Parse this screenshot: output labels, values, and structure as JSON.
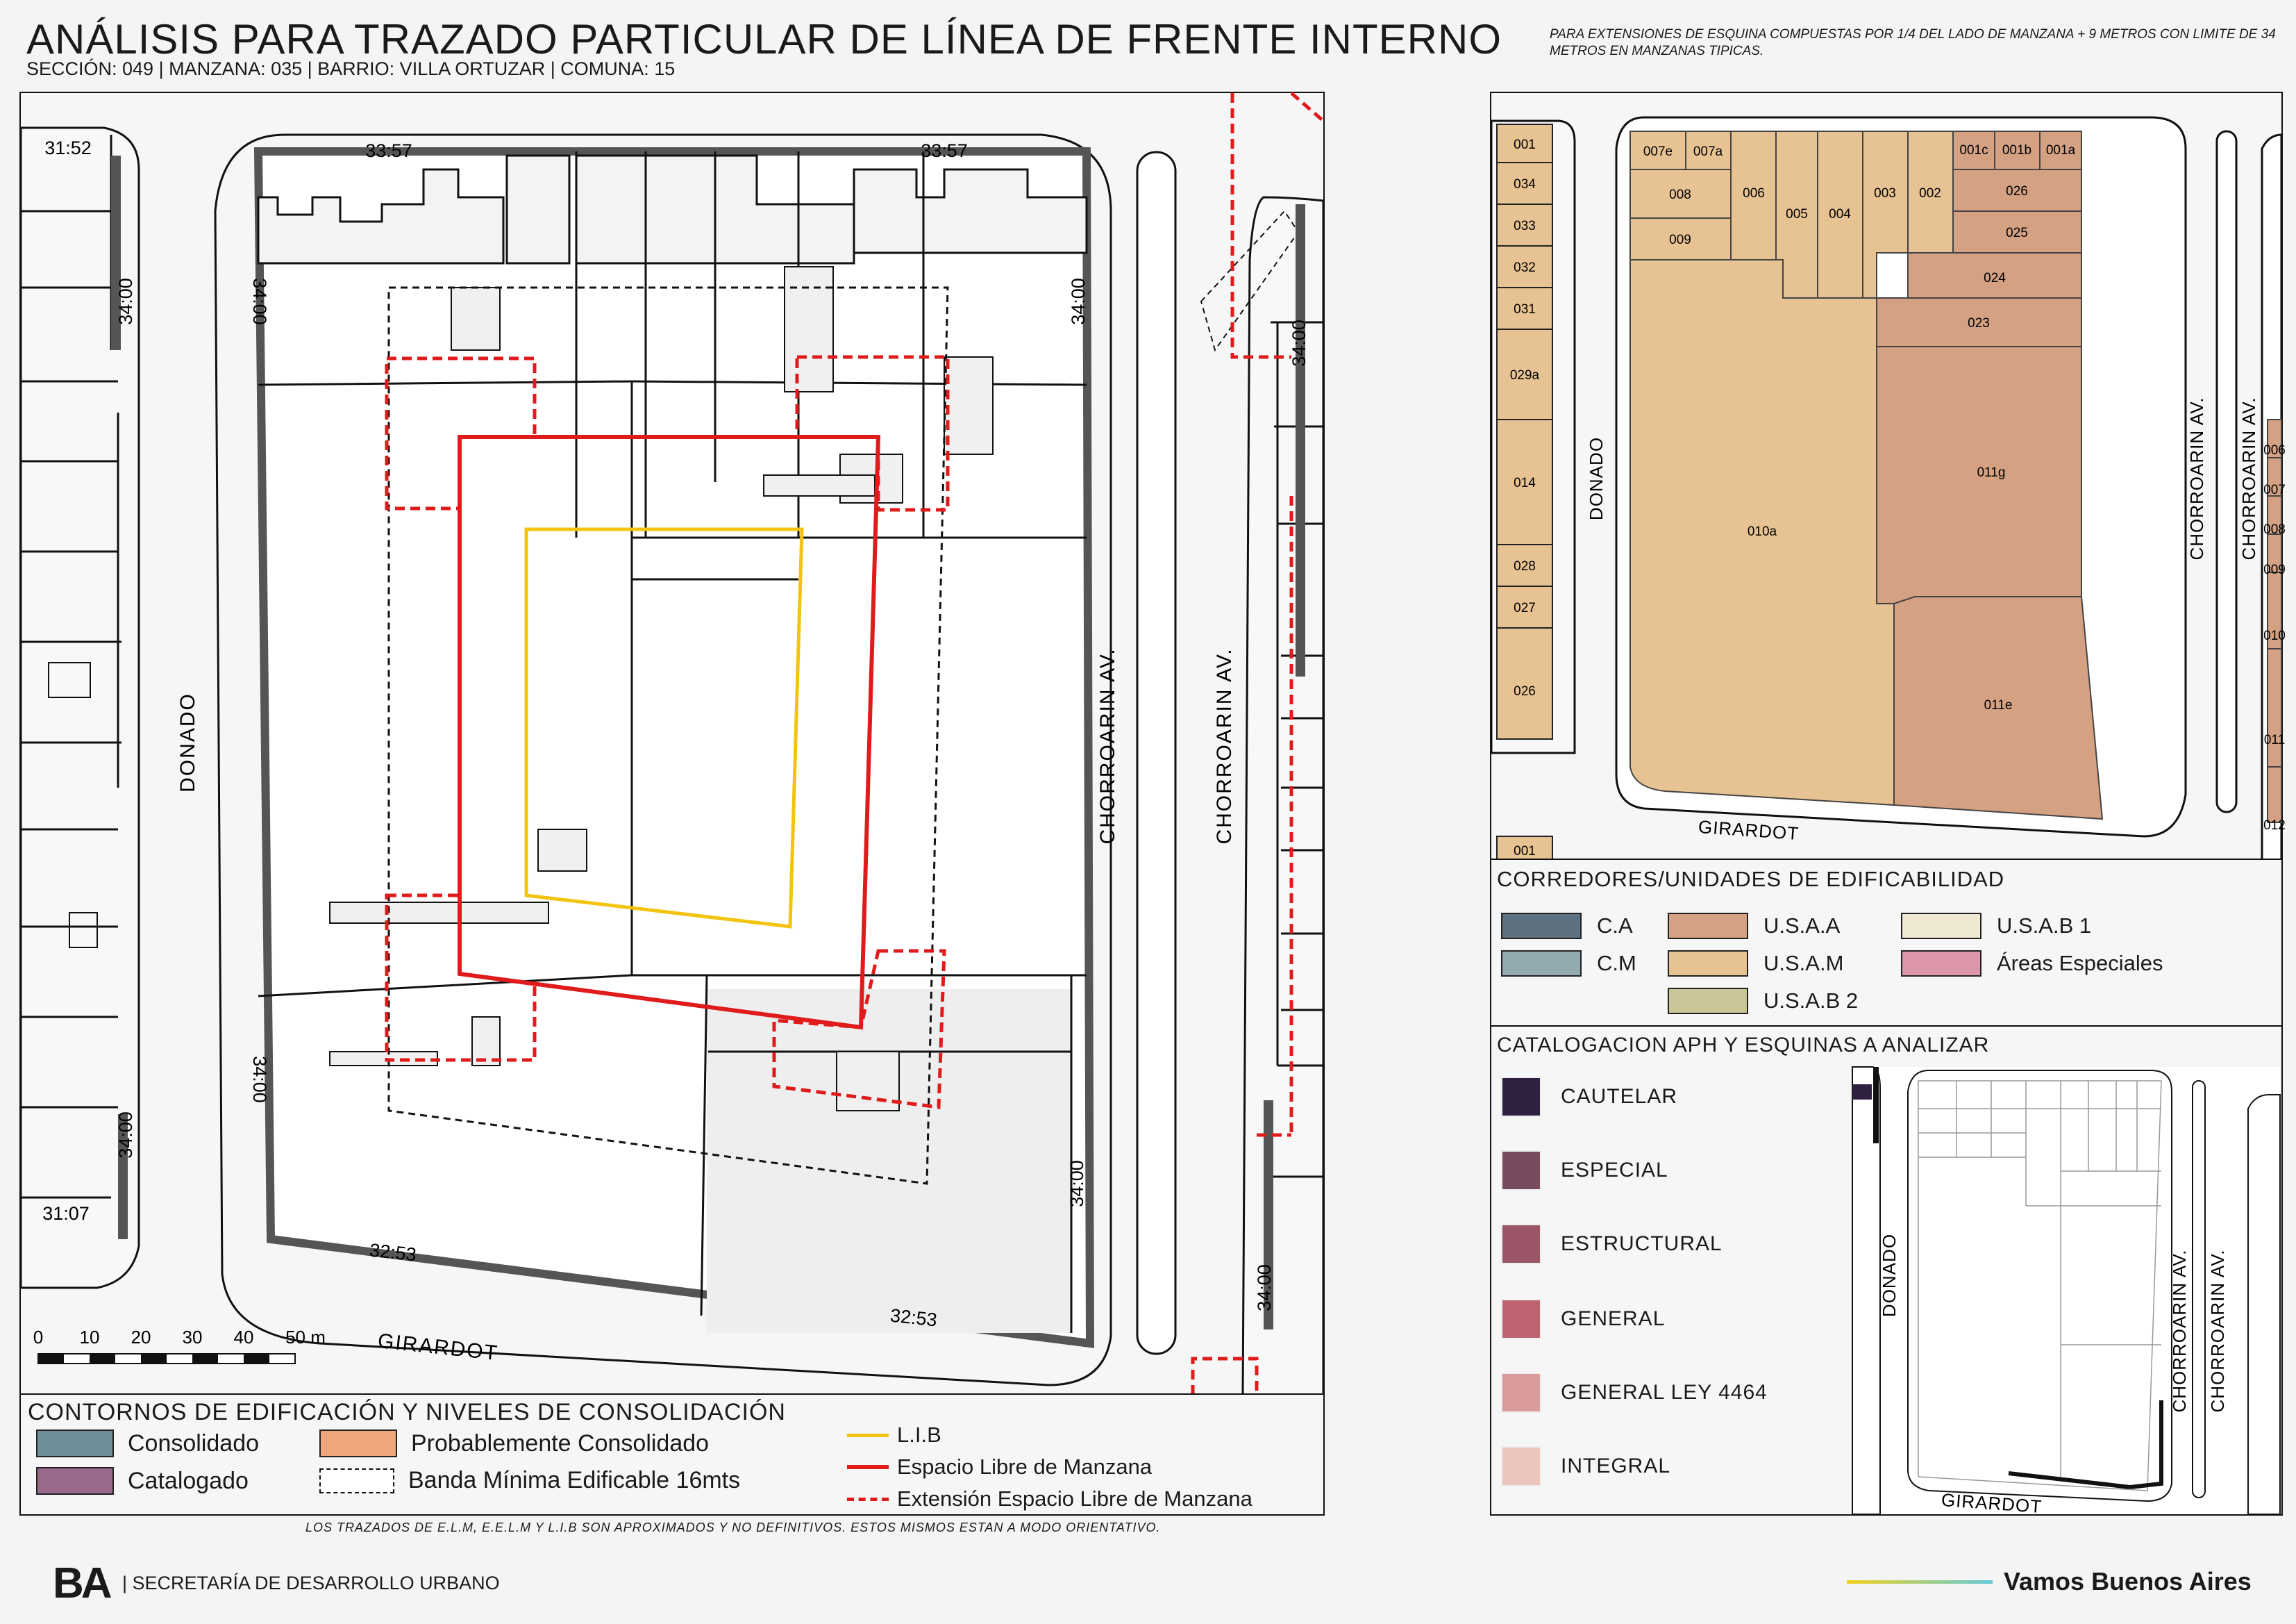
{
  "header": {
    "title": "ANÁLISIS PARA TRAZADO PARTICULAR DE LÍNEA DE FRENTE INTERNO",
    "subtitle": "SECCIÓN: 049 |  MANZANA: 035 | BARRIO: VILLA ORTUZAR | COMUNA: 15",
    "note": "PARA EXTENSIONES DE ESQUINA COMPUESTAS POR 1/4 DEL LADO DE MANZANA + 9 METROS CON LIMITE DE 34 METROS EN MANZANAS TIPICAS."
  },
  "main_map": {
    "streets": {
      "left": "DONADO",
      "right_a": "CHORROARIN AV.",
      "right_b": "CHORROARIN AV.",
      "bottom": "GIRARDOT"
    },
    "dimensions": {
      "top_left": "33:57",
      "top_right": "33:57",
      "left_top": "34:00",
      "left_bottom": "34:00",
      "right_top": "34:00",
      "right_bottom": "34:00",
      "bottom_left": "32:53",
      "bottom_right": "32:53",
      "west_block_top": "31:52",
      "west_block_mid": "34:00",
      "west_block_low": "34:00",
      "west_block_bottom": "31:07",
      "east_block_top": "34:00",
      "east_block_bottom": "34:00"
    },
    "scale": {
      "ticks": [
        "0",
        "10",
        "20",
        "30",
        "40",
        "50 m"
      ]
    }
  },
  "legend_contornos": {
    "title": "CONTORNOS DE EDIFICACIÓN Y NIVELES DE CONSOLIDACIÓN",
    "items": [
      {
        "label": "Consolidado",
        "color": "#6b8e99"
      },
      {
        "label": "Probablemente Consolidado",
        "color": "#f0a57a"
      },
      {
        "label": "Catalogado",
        "color": "#9b6a8a"
      },
      {
        "label": "Banda Mínima Edificable 16mts",
        "color": "#ffffff"
      }
    ],
    "lines": [
      {
        "label": "L.I.B",
        "color": "#f2c40f"
      },
      {
        "label": "Espacio Libre de Manzana",
        "color": "#e01b1b"
      },
      {
        "label": "Extensión Espacio Libre de Manzana",
        "color": "#e01b1b"
      }
    ]
  },
  "parcel_map": {
    "streets": {
      "left": "DONADO",
      "right_a": "CHORROARIN AV.",
      "right_b": "CHORROARIN AV.",
      "bottom": "GIRARDOT"
    },
    "parcels": [
      "001",
      "034",
      "033",
      "032",
      "031",
      "029a",
      "014",
      "028",
      "027",
      "026",
      "007e",
      "007a",
      "008",
      "009",
      "006",
      "005",
      "004",
      "003",
      "002",
      "001c",
      "001b",
      "001a",
      "026",
      "025",
      "024",
      "023",
      "011g",
      "010a",
      "011e",
      "006",
      "007",
      "008",
      "009",
      "010",
      "011",
      "012",
      "001"
    ]
  },
  "legend_corredores": {
    "title": "CORREDORES/UNIDADES DE EDIFICABILIDAD",
    "items": [
      {
        "label": "C.A",
        "color": "#5d7180"
      },
      {
        "label": "C.M",
        "color": "#92aab0"
      },
      {
        "label": "U.S.A.A",
        "color": "#d4a183"
      },
      {
        "label": "U.S.A.M",
        "color": "#e7c393"
      },
      {
        "label": "U.S.A.B 2",
        "color": "#c9c596"
      },
      {
        "label": "U.S.A.B 1",
        "color": "#efe8d2"
      },
      {
        "label": "Áreas Especiales",
        "color": "#dc97aa"
      }
    ]
  },
  "legend_catalogacion": {
    "title": "CATALOGACION APH Y ESQUINAS A ANALIZAR",
    "items": [
      {
        "label": "CAUTELAR",
        "color": "#2e2140"
      },
      {
        "label": "ESPECIAL",
        "color": "#7a4b5f"
      },
      {
        "label": "ESTRUCTURAL",
        "color": "#9a5567"
      },
      {
        "label": "GENERAL",
        "color": "#bd6470"
      },
      {
        "label": "GENERAL LEY 4464",
        "color": "#d99b9b"
      },
      {
        "label": "INTEGRAL",
        "color": "#ecc6bd"
      }
    ],
    "mini_map_streets": {
      "left": "DONADO",
      "right_a": "CHORROARIN AV.",
      "right_b": "CHORROARIN AV.",
      "bottom": "GIRARDOT"
    }
  },
  "footer": {
    "disclaimer": "LOS TRAZADOS DE E.L.M, E.E.L.M Y L.I.B SON APROXIMADOS Y NO DEFINITIVOS. ESTOS MISMOS ESTAN A MODO ORIENTATIVO.",
    "logo": "BA",
    "org": "| SECRETARÍA DE DESARROLLO URBANO",
    "slogan": "Vamos Buenos Aires"
  }
}
